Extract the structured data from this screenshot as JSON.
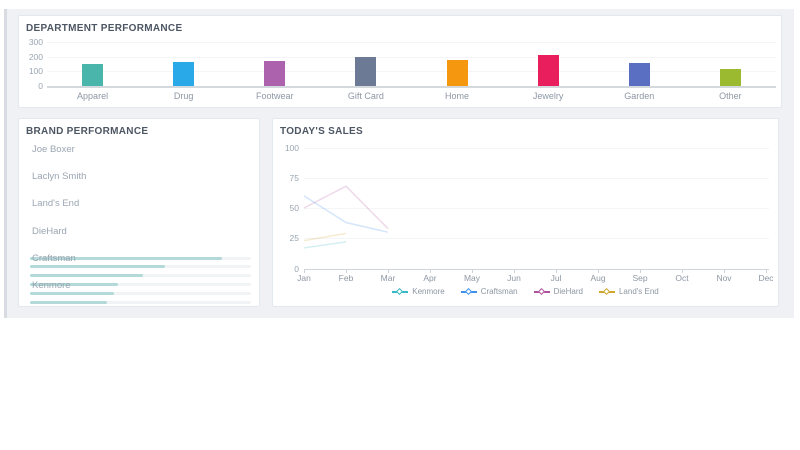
{
  "panels": {
    "department": {
      "title": "DEPARTMENT PERFORMANCE"
    },
    "brand": {
      "title": "BRAND PERFORMANCE"
    },
    "sales": {
      "title": "TODAY'S SALES"
    }
  },
  "colors": {
    "container_bg": "#eff1f5",
    "panel_border": "#e3e8ee",
    "title_text": "#4d5663",
    "axis_label": "#9aa5b1",
    "brand_bar_fill": "#b3d9d9",
    "brand_bar_track": "#f1f4f4"
  },
  "chart_data": [
    {
      "id": "department-performance",
      "type": "bar",
      "title": "DEPARTMENT PERFORMANCE",
      "categories": [
        "Apparel",
        "Drug",
        "Footwear",
        "Gift Card",
        "Home",
        "Jewelry",
        "Garden",
        "Other"
      ],
      "values": [
        150,
        165,
        170,
        200,
        180,
        210,
        160,
        120
      ],
      "bar_colors": [
        "#4ab5ab",
        "#2aa9e9",
        "#ad62ad",
        "#6c7a96",
        "#f5980f",
        "#e91e5d",
        "#5a6fc2",
        "#9cba2f"
      ],
      "xlabel": "",
      "ylabel": "",
      "ylim": [
        0,
        300
      ],
      "yticks": [
        0,
        100,
        200,
        300
      ],
      "grid": true,
      "legend_position": "none"
    },
    {
      "id": "brand-performance",
      "type": "bar",
      "orientation": "horizontal",
      "title": "BRAND PERFORMANCE",
      "categories": [
        "Joe Boxer",
        "Laclyn Smith",
        "Land's End",
        "DieHard",
        "Craftsman",
        "Kenmore"
      ],
      "values_pct": [
        87,
        61,
        51,
        40,
        38,
        35
      ],
      "bar_color": "#b3d9d9",
      "track_color": "#f1f4f4",
      "grid": false,
      "legend_position": "none"
    },
    {
      "id": "todays-sales",
      "type": "line",
      "title": "TODAY'S SALES",
      "x": [
        "Jan",
        "Feb",
        "Mar",
        "Apr",
        "May",
        "Jun",
        "Jul",
        "Aug",
        "Sep",
        "Oct",
        "Nov",
        "Dec"
      ],
      "ylim": [
        0,
        100
      ],
      "yticks": [
        0,
        25,
        50,
        75,
        100
      ],
      "grid": true,
      "legend_position": "bottom",
      "line_opacity": 0.22,
      "series": [
        {
          "name": "Kenmore",
          "color": "#35b8c4",
          "values": [
            17,
            22
          ]
        },
        {
          "name": "Craftsman",
          "color": "#3d8fe8",
          "values": [
            60,
            38,
            30
          ]
        },
        {
          "name": "DieHard",
          "color": "#b0519f",
          "values": [
            50,
            68,
            33
          ]
        },
        {
          "name": "Land's End",
          "color": "#cfa52f",
          "values": [
            23,
            29
          ]
        }
      ]
    }
  ]
}
